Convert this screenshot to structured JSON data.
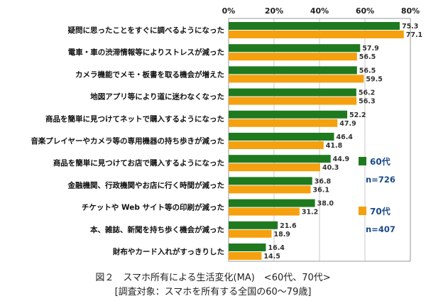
{
  "caption": {
    "line1": "図２　スマホ所有による生活変化(MA)　<60代、70代>",
    "line2": "[調査対象：スマホを所有する全国の60～79歳]"
  },
  "chart_data": {
    "type": "bar",
    "orientation": "horizontal",
    "xlim": [
      0,
      80
    ],
    "ticks": [
      0,
      20,
      40,
      60,
      80
    ],
    "tick_labels": [
      "0%",
      "20%",
      "40%",
      "60%",
      "80%"
    ],
    "tick_position": "top",
    "grid": true,
    "legend_position": "right",
    "categories": [
      "疑問に思ったことをすぐに調べるようになった",
      "電車・車の渋滞情報等によりストレスが減った",
      "カメラ機能でメモ・板書を取る機会が増えた",
      "地図アプリ等により道に迷わなくなった",
      "商品を簡単に見つけてネットで購入するようになった",
      "音楽プレイヤーやカメラ等の専用機器の持ち歩きが減った",
      "商品を簡単に見つけてお店で購入するようになった",
      "金融機関、行政機関やお店に行く時間が減った",
      "チケットや Web サイト等の印刷が減った",
      "本、雑誌、新聞を持ち歩く機会が減った",
      "財布やカード入れがすっきりした"
    ],
    "series": [
      {
        "name": "60代",
        "n": "n=726",
        "color": "#1f7a1f",
        "labels": [
          "75.3",
          "57.9",
          "56.5",
          "56.2",
          "52.2",
          "46.4",
          "44.9",
          "36.8",
          "38.0",
          "21.6",
          "16.4"
        ],
        "values": [
          75.3,
          57.9,
          56.5,
          56.2,
          52.2,
          46.4,
          44.9,
          36.8,
          38.0,
          21.6,
          16.4
        ]
      },
      {
        "name": "70代",
        "n": "n=407",
        "color": "#f5a00f",
        "labels": [
          "77.1",
          "56.5",
          "59.5",
          "56.3",
          "47.9",
          "41.8",
          "40.3",
          "36.1",
          "31.2",
          "18.9",
          "14.5"
        ],
        "values": [
          77.1,
          56.5,
          59.5,
          56.3,
          47.9,
          41.8,
          40.3,
          36.1,
          31.2,
          18.9,
          14.5
        ]
      }
    ]
  }
}
